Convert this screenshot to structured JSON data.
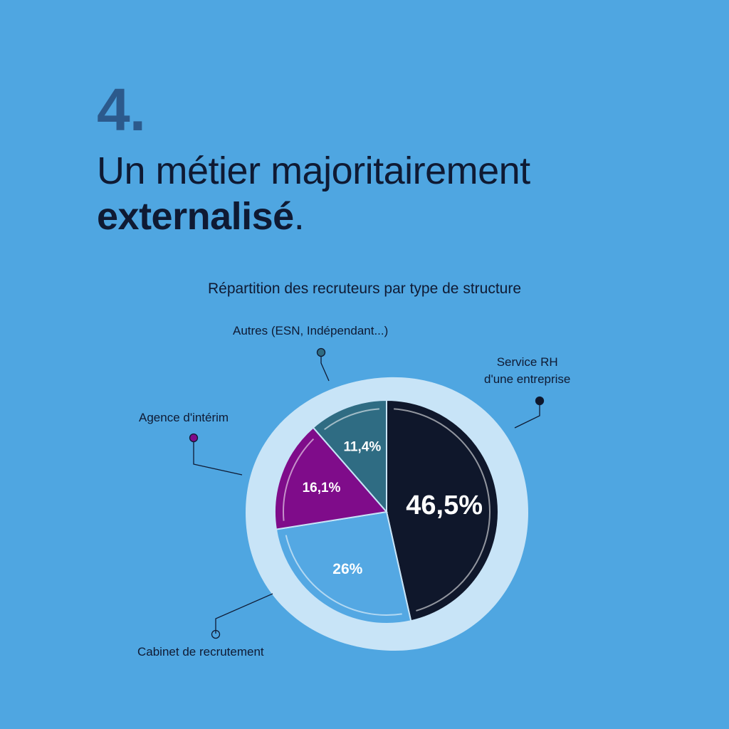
{
  "header": {
    "step_number": "4.",
    "headline_line1": "Un métier majoritairement",
    "headline_bold": "externalisé",
    "headline_end": "."
  },
  "chart_data": {
    "type": "pie",
    "title": "Répartition des recruteurs par type de structure",
    "slices": [
      {
        "label": "Service RH d'une entreprise",
        "label_lines": [
          "Service RH",
          "d'une entreprise"
        ],
        "value": 46.5,
        "value_label": "46,5%",
        "color": "#0F172B"
      },
      {
        "label": "Cabinet de recrutement",
        "label_lines": [
          "Cabinet de recrutement"
        ],
        "value": 26,
        "value_label": "26%",
        "color": "#54A8E3"
      },
      {
        "label": "Agence d'intérim",
        "label_lines": [
          "Agence d'intérim"
        ],
        "value": 16.1,
        "value_label": "16,1%",
        "color": "#7F0C8A"
      },
      {
        "label": "Autres (ESN, Indépendant...)",
        "label_lines": [
          "Autres (ESN, Indépendant...)"
        ],
        "value": 11.4,
        "value_label": "11,4%",
        "color": "#2F6C83"
      }
    ],
    "colors": {
      "ring": "#C8E4F7",
      "background": "#4FA6E1",
      "text": "#0F1A33"
    }
  }
}
